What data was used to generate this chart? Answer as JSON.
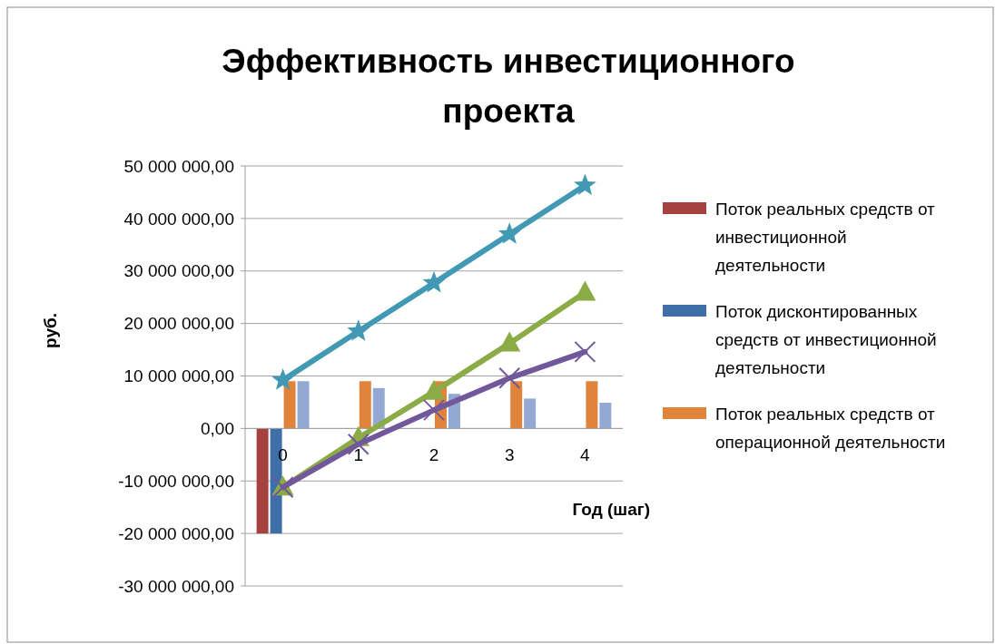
{
  "chart_data": {
    "type": "bar",
    "title": "Эффективность инвестиционного проекта",
    "xlabel": "Год (шаг)",
    "ylabel": "руб.",
    "categories": [
      "0",
      "1",
      "2",
      "3",
      "4"
    ],
    "series": [
      {
        "name": "Поток реальных средств от инвестиционной деятельности",
        "color": "#a5413f",
        "values": [
          -20000000,
          0,
          0,
          0,
          0
        ]
      },
      {
        "name": "Поток дисконтированных средств от инвестиционной деятельности",
        "color": "#3e6fa8",
        "values": [
          -20000000,
          0,
          0,
          0,
          0
        ]
      },
      {
        "name": "Поток реальных средств от операционной деятельности",
        "color": "#e0833b",
        "values": [
          9000000,
          9000000,
          9000000,
          9000000,
          9000000
        ]
      },
      {
        "color": "#93a9d4",
        "values": [
          9000000,
          7700000,
          6600000,
          5700000,
          4900000
        ]
      },
      {
        "type": "line",
        "color": "#4199b3",
        "marker": "star",
        "values": [
          9200000,
          18500000,
          27700000,
          37000000,
          46300000
        ]
      },
      {
        "type": "line",
        "color": "#8aab45",
        "marker": "triangle",
        "values": [
          -11200000,
          -1800000,
          7000000,
          16200000,
          25900000
        ]
      },
      {
        "type": "line",
        "color": "#71589a",
        "marker": "cross",
        "values": [
          -11200000,
          -3000000,
          3500000,
          9600000,
          14600000
        ]
      }
    ],
    "ylim": [
      -30000000,
      50000000
    ],
    "yticks": [
      {
        "value": -30000000,
        "label": "-30 000 000,00"
      },
      {
        "value": -20000000,
        "label": "-20 000 000,00"
      },
      {
        "value": -10000000,
        "label": "-10 000 000,00"
      },
      {
        "value": 0,
        "label": "0,00"
      },
      {
        "value": 10000000,
        "label": "10 000 000,00"
      },
      {
        "value": 20000000,
        "label": "20 000 000,00"
      },
      {
        "value": 30000000,
        "label": "30 000 000,00"
      },
      {
        "value": 40000000,
        "label": "40 000 000,00"
      },
      {
        "value": 50000000,
        "label": "50 000 000,00"
      }
    ],
    "grid": "y",
    "legend": "right"
  }
}
